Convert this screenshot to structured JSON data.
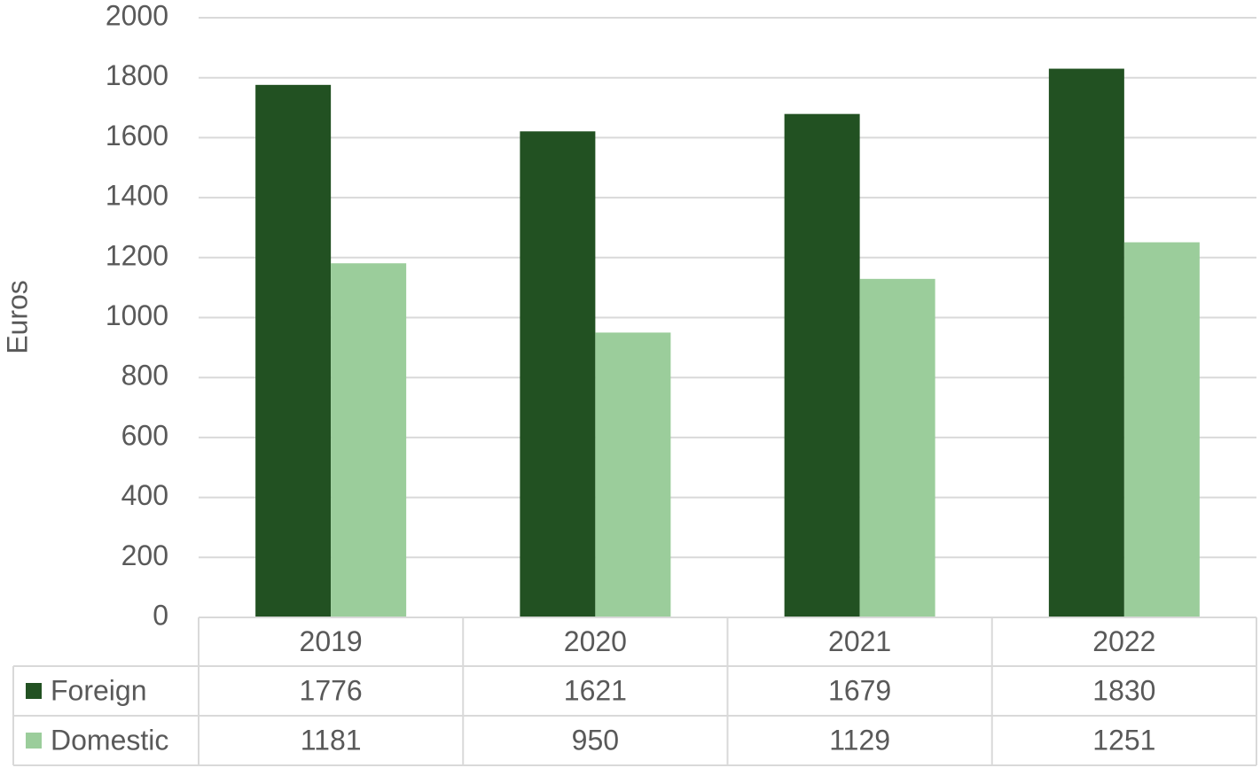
{
  "chart_data": {
    "type": "bar",
    "y_label": "Euros",
    "categories": [
      "2019",
      "2020",
      "2021",
      "2022"
    ],
    "series": [
      {
        "name": "Foreign",
        "color": "#225122",
        "values": [
          1776,
          1621,
          1679,
          1830
        ]
      },
      {
        "name": "Domestic",
        "color": "#9bcd9b",
        "values": [
          1181,
          950,
          1129,
          1251
        ]
      }
    ],
    "ylim": [
      0,
      2000
    ],
    "yticks": [
      0,
      200,
      400,
      600,
      800,
      1000,
      1200,
      1400,
      1600,
      1800,
      2000
    ],
    "grid": true,
    "data_table": true
  }
}
